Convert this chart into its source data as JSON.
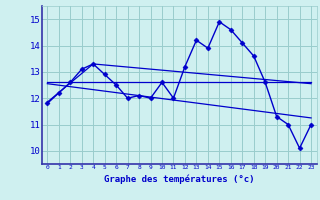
{
  "title": "",
  "xlabel": "Graphe des températures (°c)",
  "ylabel": "",
  "bg_color": "#cff0f0",
  "line_color": "#0000cc",
  "grid_color": "#99cccc",
  "xlim": [
    -0.5,
    23.5
  ],
  "ylim": [
    9.5,
    15.5
  ],
  "xticks": [
    0,
    1,
    2,
    3,
    4,
    5,
    6,
    7,
    8,
    9,
    10,
    11,
    12,
    13,
    14,
    15,
    16,
    17,
    18,
    19,
    20,
    21,
    22,
    23
  ],
  "yticks": [
    10,
    11,
    12,
    13,
    14,
    15
  ],
  "main_y": [
    11.8,
    12.2,
    12.6,
    13.1,
    13.3,
    12.9,
    12.5,
    12.0,
    12.1,
    12.0,
    12.6,
    12.0,
    13.2,
    14.2,
    13.9,
    14.9,
    14.6,
    14.1,
    13.6,
    12.6,
    11.3,
    11.0,
    10.1,
    11.0
  ],
  "trend1_x": [
    0,
    23
  ],
  "trend1_y": [
    12.6,
    12.6
  ],
  "trend2_x": [
    0,
    23
  ],
  "trend2_y": [
    12.55,
    11.25
  ],
  "trend3_x": [
    0,
    4,
    23
  ],
  "trend3_y": [
    11.85,
    13.3,
    12.55
  ],
  "figsize": [
    3.2,
    2.0
  ],
  "dpi": 100
}
